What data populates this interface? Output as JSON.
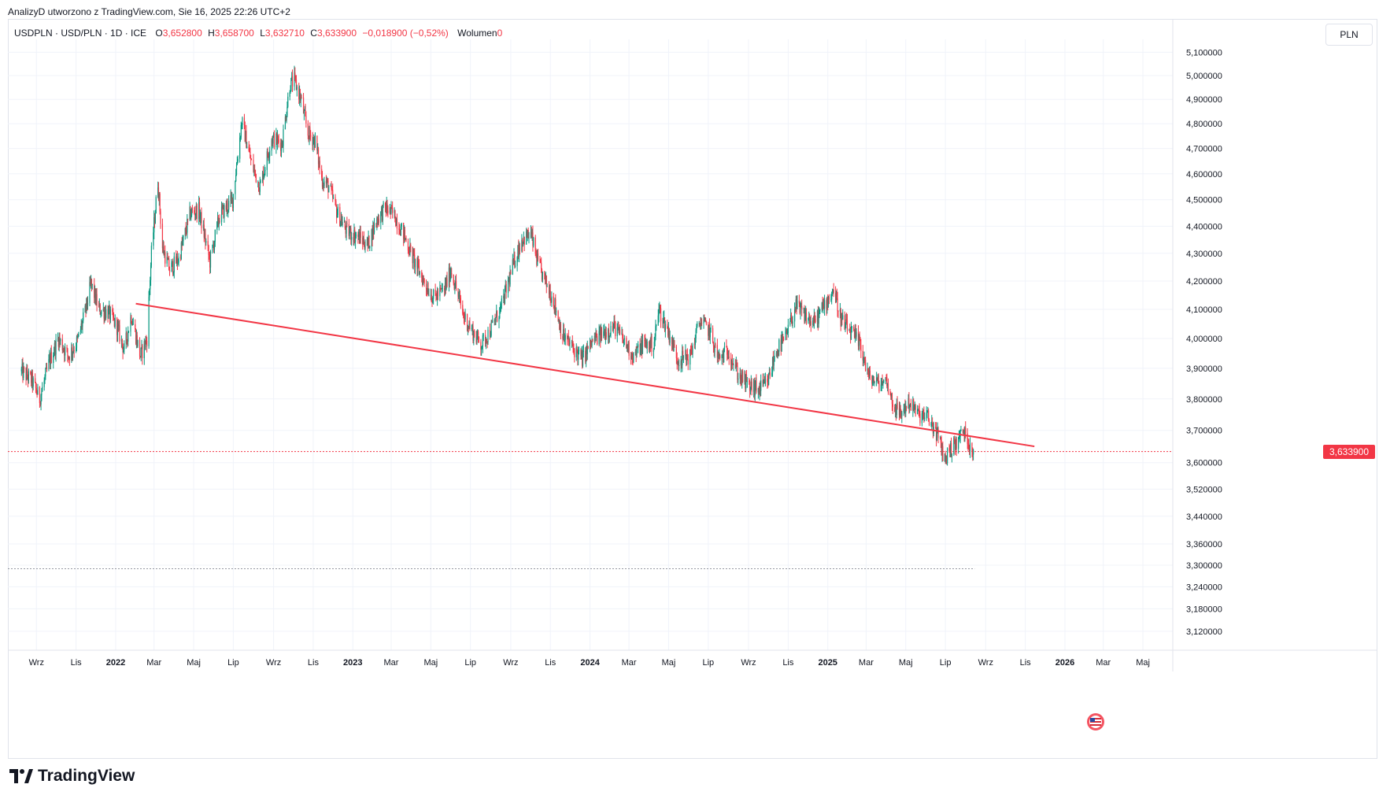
{
  "header": {
    "attribution": "AnalizyD utworzono z TradingView.com, Sie 16, 2025 22:26 UTC+2"
  },
  "legend": {
    "symbol": "USDPLN · USD/PLN · 1D · ICE",
    "o_label": "O",
    "o_value": "3,652800",
    "h_label": "H",
    "h_value": "3,658700",
    "l_label": "L",
    "l_value": "3,632710",
    "c_label": "C",
    "c_value": "3,633900",
    "change": "−0,018900 (−0,52%)",
    "volume_label": "Wolumen",
    "volume_value": "0"
  },
  "price_axis": {
    "currency": "PLN"
  },
  "last_price": {
    "label": "3,633900",
    "value": 3.6339
  },
  "footer": {
    "brand": "TradingView"
  },
  "colors": {
    "up": "#089981",
    "down": "#f23645",
    "trendline": "#f23645",
    "grid": "#f0f3fa"
  },
  "icons": {
    "flag": "us-flag-icon",
    "logo": "tradingview-logo-icon"
  },
  "chart_data": {
    "type": "candlestick",
    "scale": "log",
    "grid": true,
    "y_ticks": [
      {
        "value": 5.1,
        "label": "5,100000"
      },
      {
        "value": 5.0,
        "label": "5,000000"
      },
      {
        "value": 4.9,
        "label": "4,900000"
      },
      {
        "value": 4.8,
        "label": "4,800000"
      },
      {
        "value": 4.7,
        "label": "4,700000"
      },
      {
        "value": 4.6,
        "label": "4,600000"
      },
      {
        "value": 4.5,
        "label": "4,500000"
      },
      {
        "value": 4.4,
        "label": "4,400000"
      },
      {
        "value": 4.3,
        "label": "4,300000"
      },
      {
        "value": 4.2,
        "label": "4,200000"
      },
      {
        "value": 4.1,
        "label": "4,100000"
      },
      {
        "value": 4.0,
        "label": "4,000000"
      },
      {
        "value": 3.9,
        "label": "3,900000"
      },
      {
        "value": 3.8,
        "label": "3,800000"
      },
      {
        "value": 3.7,
        "label": "3,700000"
      },
      {
        "value": 3.6,
        "label": "3,600000"
      },
      {
        "value": 3.52,
        "label": "3,520000"
      },
      {
        "value": 3.44,
        "label": "3,440000"
      },
      {
        "value": 3.36,
        "label": "3,360000"
      },
      {
        "value": 3.3,
        "label": "3,300000"
      },
      {
        "value": 3.24,
        "label": "3,240000"
      },
      {
        "value": 3.18,
        "label": "3,180000"
      },
      {
        "value": 3.12,
        "label": "3,120000"
      }
    ],
    "x_ticks": [
      {
        "date": "2021-09-01",
        "label": "Wrz",
        "bold": false
      },
      {
        "date": "2021-11-01",
        "label": "Lis",
        "bold": false
      },
      {
        "date": "2022-01-01",
        "label": "2022",
        "bold": true
      },
      {
        "date": "2022-03-01",
        "label": "Mar",
        "bold": false
      },
      {
        "date": "2022-05-01",
        "label": "Maj",
        "bold": false
      },
      {
        "date": "2022-07-01",
        "label": "Lip",
        "bold": false
      },
      {
        "date": "2022-09-01",
        "label": "Wrz",
        "bold": false
      },
      {
        "date": "2022-11-01",
        "label": "Lis",
        "bold": false
      },
      {
        "date": "2023-01-01",
        "label": "2023",
        "bold": true
      },
      {
        "date": "2023-03-01",
        "label": "Mar",
        "bold": false
      },
      {
        "date": "2023-05-01",
        "label": "Maj",
        "bold": false
      },
      {
        "date": "2023-07-01",
        "label": "Lip",
        "bold": false
      },
      {
        "date": "2023-09-01",
        "label": "Wrz",
        "bold": false
      },
      {
        "date": "2023-11-01",
        "label": "Lis",
        "bold": false
      },
      {
        "date": "2024-01-01",
        "label": "2024",
        "bold": true
      },
      {
        "date": "2024-03-01",
        "label": "Mar",
        "bold": false
      },
      {
        "date": "2024-05-01",
        "label": "Maj",
        "bold": false
      },
      {
        "date": "2024-07-01",
        "label": "Lip",
        "bold": false
      },
      {
        "date": "2024-09-01",
        "label": "Wrz",
        "bold": false
      },
      {
        "date": "2024-11-01",
        "label": "Lis",
        "bold": false
      },
      {
        "date": "2025-01-01",
        "label": "2025",
        "bold": true
      },
      {
        "date": "2025-03-01",
        "label": "Mar",
        "bold": false
      },
      {
        "date": "2025-05-01",
        "label": "Maj",
        "bold": false
      },
      {
        "date": "2025-07-01",
        "label": "Lip",
        "bold": false
      },
      {
        "date": "2025-09-01",
        "label": "Wrz",
        "bold": false
      },
      {
        "date": "2025-11-01",
        "label": "Lis",
        "bold": false
      },
      {
        "date": "2026-01-01",
        "label": "2026",
        "bold": true
      },
      {
        "date": "2026-03-01",
        "label": "Mar",
        "bold": false
      },
      {
        "date": "2026-05-01",
        "label": "Maj",
        "bold": false
      }
    ],
    "x_range": [
      "2021-08-09",
      "2026-06-15"
    ],
    "y_range": [
      3.08,
      5.16
    ],
    "price_path": [
      {
        "date": "2021-08-09",
        "close": 3.89
      },
      {
        "date": "2021-08-25",
        "close": 3.86
      },
      {
        "date": "2021-09-06",
        "close": 3.8
      },
      {
        "date": "2021-09-22",
        "close": 3.93
      },
      {
        "date": "2021-10-05",
        "close": 4.0
      },
      {
        "date": "2021-10-20",
        "close": 3.94
      },
      {
        "date": "2021-11-03",
        "close": 3.99
      },
      {
        "date": "2021-11-15",
        "close": 4.09
      },
      {
        "date": "2021-11-24",
        "close": 4.19
      },
      {
        "date": "2021-12-06",
        "close": 4.1
      },
      {
        "date": "2021-12-20",
        "close": 4.09
      },
      {
        "date": "2022-01-03",
        "close": 4.04
      },
      {
        "date": "2022-01-14",
        "close": 3.96
      },
      {
        "date": "2022-01-25",
        "close": 4.08
      },
      {
        "date": "2022-02-08",
        "close": 3.94
      },
      {
        "date": "2022-02-18",
        "close": 4.0
      },
      {
        "date": "2022-02-25",
        "close": 4.3
      },
      {
        "date": "2022-03-07",
        "close": 4.57
      },
      {
        "date": "2022-03-14",
        "close": 4.32
      },
      {
        "date": "2022-03-25",
        "close": 4.24
      },
      {
        "date": "2022-04-08",
        "close": 4.28
      },
      {
        "date": "2022-04-26",
        "close": 4.45
      },
      {
        "date": "2022-05-09",
        "close": 4.46
      },
      {
        "date": "2022-05-26",
        "close": 4.27
      },
      {
        "date": "2022-06-10",
        "close": 4.44
      },
      {
        "date": "2022-06-30",
        "close": 4.5
      },
      {
        "date": "2022-07-14",
        "close": 4.81
      },
      {
        "date": "2022-07-29",
        "close": 4.64
      },
      {
        "date": "2022-08-11",
        "close": 4.55
      },
      {
        "date": "2022-08-29",
        "close": 4.74
      },
      {
        "date": "2022-09-14",
        "close": 4.72
      },
      {
        "date": "2022-09-26",
        "close": 4.96
      },
      {
        "date": "2022-10-03",
        "close": 4.98
      },
      {
        "date": "2022-10-13",
        "close": 4.9
      },
      {
        "date": "2022-10-24",
        "close": 4.76
      },
      {
        "date": "2022-11-04",
        "close": 4.73
      },
      {
        "date": "2022-11-14",
        "close": 4.58
      },
      {
        "date": "2022-11-25",
        "close": 4.55
      },
      {
        "date": "2022-12-08",
        "close": 4.45
      },
      {
        "date": "2022-12-23",
        "close": 4.38
      },
      {
        "date": "2023-01-10",
        "close": 4.36
      },
      {
        "date": "2023-01-24",
        "close": 4.33
      },
      {
        "date": "2023-02-06",
        "close": 4.42
      },
      {
        "date": "2023-02-20",
        "close": 4.47
      },
      {
        "date": "2023-03-06",
        "close": 4.44
      },
      {
        "date": "2023-03-20",
        "close": 4.37
      },
      {
        "date": "2023-04-04",
        "close": 4.28
      },
      {
        "date": "2023-04-20",
        "close": 4.2
      },
      {
        "date": "2023-05-05",
        "close": 4.14
      },
      {
        "date": "2023-05-22",
        "close": 4.17
      },
      {
        "date": "2023-06-01",
        "close": 4.24
      },
      {
        "date": "2023-06-20",
        "close": 4.08
      },
      {
        "date": "2023-07-05",
        "close": 4.02
      },
      {
        "date": "2023-07-18",
        "close": 3.98
      },
      {
        "date": "2023-08-01",
        "close": 4.03
      },
      {
        "date": "2023-08-18",
        "close": 4.11
      },
      {
        "date": "2023-09-05",
        "close": 4.26
      },
      {
        "date": "2023-09-18",
        "close": 4.35
      },
      {
        "date": "2023-10-02",
        "close": 4.37
      },
      {
        "date": "2023-10-12",
        "close": 4.27
      },
      {
        "date": "2023-10-20",
        "close": 4.22
      },
      {
        "date": "2023-11-06",
        "close": 4.13
      },
      {
        "date": "2023-11-20",
        "close": 4.01
      },
      {
        "date": "2023-12-05",
        "close": 3.97
      },
      {
        "date": "2023-12-20",
        "close": 3.93
      },
      {
        "date": "2024-01-05",
        "close": 3.99
      },
      {
        "date": "2024-01-22",
        "close": 4.02
      },
      {
        "date": "2024-02-08",
        "close": 4.04
      },
      {
        "date": "2024-02-22",
        "close": 3.99
      },
      {
        "date": "2024-03-08",
        "close": 3.94
      },
      {
        "date": "2024-03-22",
        "close": 3.98
      },
      {
        "date": "2024-04-08",
        "close": 3.98
      },
      {
        "date": "2024-04-16",
        "close": 4.1
      },
      {
        "date": "2024-05-01",
        "close": 4.02
      },
      {
        "date": "2024-05-15",
        "close": 3.93
      },
      {
        "date": "2024-06-03",
        "close": 3.94
      },
      {
        "date": "2024-06-18",
        "close": 4.06
      },
      {
        "date": "2024-07-02",
        "close": 4.03
      },
      {
        "date": "2024-07-17",
        "close": 3.93
      },
      {
        "date": "2024-08-01",
        "close": 3.96
      },
      {
        "date": "2024-08-16",
        "close": 3.88
      },
      {
        "date": "2024-09-02",
        "close": 3.84
      },
      {
        "date": "2024-09-16",
        "close": 3.83
      },
      {
        "date": "2024-09-30",
        "close": 3.85
      },
      {
        "date": "2024-10-14",
        "close": 3.96
      },
      {
        "date": "2024-10-28",
        "close": 4.0
      },
      {
        "date": "2024-11-12",
        "close": 4.11
      },
      {
        "date": "2024-11-26",
        "close": 4.08
      },
      {
        "date": "2024-12-10",
        "close": 4.05
      },
      {
        "date": "2024-12-23",
        "close": 4.1
      },
      {
        "date": "2025-01-10",
        "close": 4.17
      },
      {
        "date": "2025-01-22",
        "close": 4.06
      },
      {
        "date": "2025-02-05",
        "close": 4.02
      },
      {
        "date": "2025-02-20",
        "close": 3.98
      },
      {
        "date": "2025-03-05",
        "close": 3.87
      },
      {
        "date": "2025-03-20",
        "close": 3.85
      },
      {
        "date": "2025-04-02",
        "close": 3.86
      },
      {
        "date": "2025-04-10",
        "close": 3.79
      },
      {
        "date": "2025-04-22",
        "close": 3.75
      },
      {
        "date": "2025-05-06",
        "close": 3.79
      },
      {
        "date": "2025-05-20",
        "close": 3.75
      },
      {
        "date": "2025-06-04",
        "close": 3.74
      },
      {
        "date": "2025-06-18",
        "close": 3.69
      },
      {
        "date": "2025-06-30",
        "close": 3.61
      },
      {
        "date": "2025-07-08",
        "close": 3.64
      },
      {
        "date": "2025-07-18",
        "close": 3.66
      },
      {
        "date": "2025-07-28",
        "close": 3.7
      },
      {
        "date": "2025-08-04",
        "close": 3.67
      },
      {
        "date": "2025-08-14",
        "close": 3.634
      }
    ],
    "trendline": {
      "start": {
        "date": "2022-02-01",
        "price": 4.12
      },
      "end": {
        "date": "2025-11-15",
        "price": 3.65
      }
    },
    "dotted_lines": [
      {
        "price": 3.6339,
        "color": "#f23645"
      },
      {
        "price": 3.29,
        "color": "#9598a1",
        "end_date": "2025-08-15"
      }
    ]
  }
}
